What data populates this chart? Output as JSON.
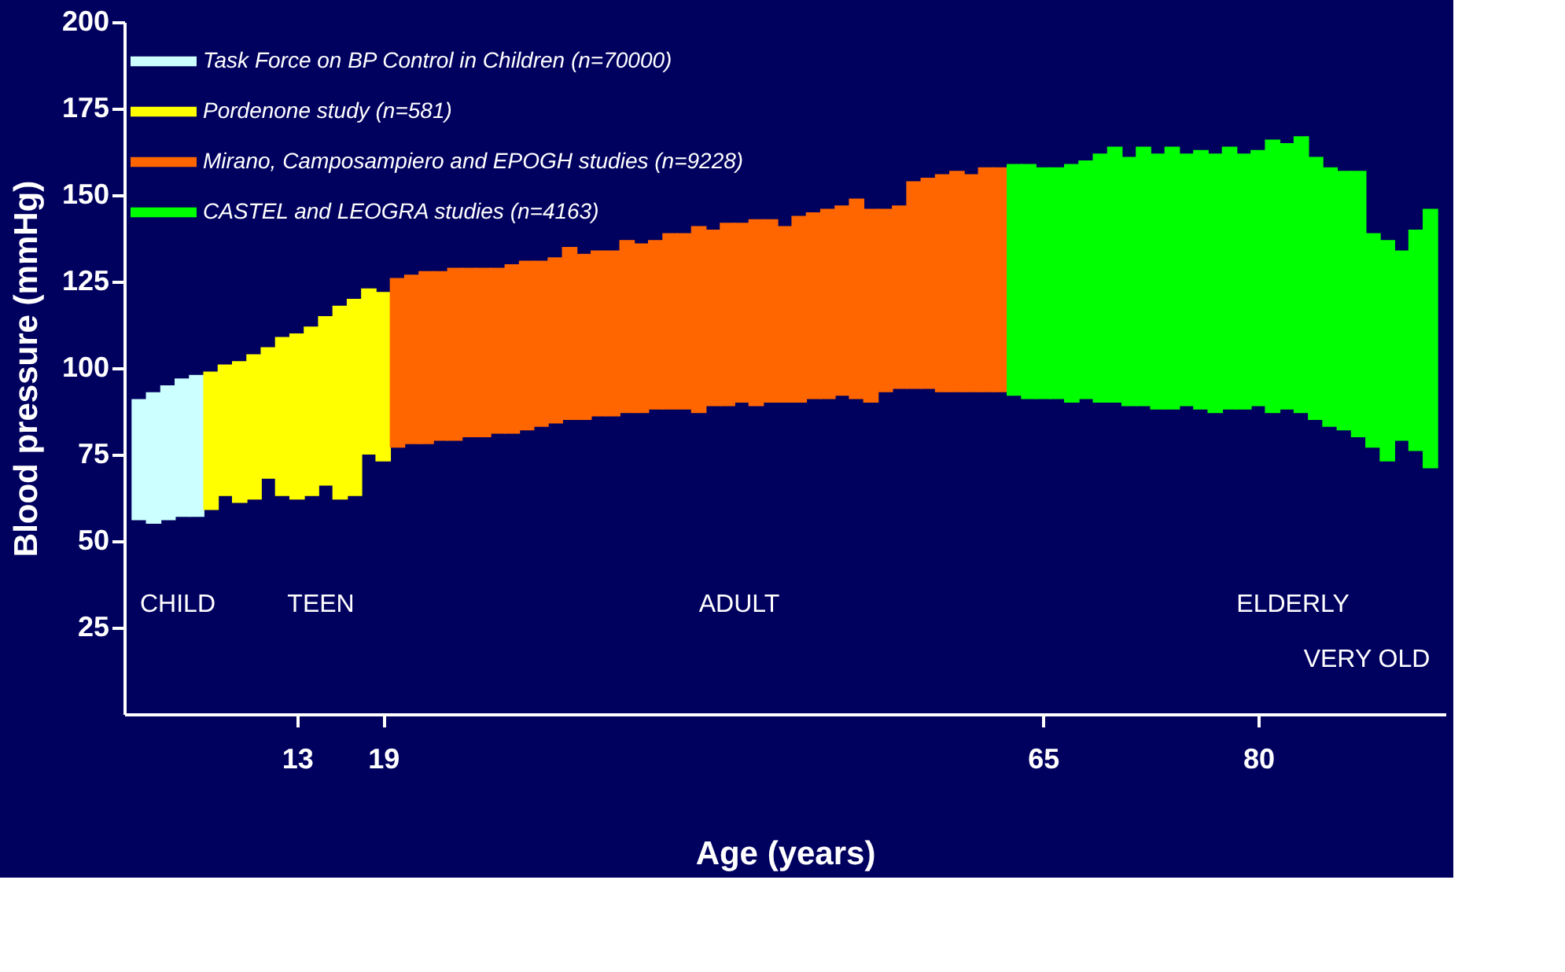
{
  "chart_data": {
    "type": "bar",
    "xlabel": "Age (years)",
    "ylabel": "Blood pressure (mmHg)",
    "series": [
      {
        "name": "Task Force on BP Control in Children (n=70000)",
        "color": "#ccffff",
        "x": [
          2,
          3,
          4,
          5,
          6
        ],
        "base": [
          56,
          55,
          56,
          57,
          57
        ],
        "values": [
          35,
          38,
          39,
          40,
          41
        ]
      },
      {
        "name": "Pordenone study (n=581)",
        "color": "#ffff00",
        "x": [
          7,
          8,
          9,
          10,
          11,
          12,
          13,
          14,
          15,
          16,
          17,
          18,
          19
        ],
        "base": [
          59,
          63,
          61,
          62,
          68,
          63,
          62,
          63,
          66,
          62,
          63,
          75,
          73
        ],
        "values": [
          40,
          38,
          41,
          42,
          38,
          46,
          48,
          49,
          49,
          56,
          57,
          48,
          49
        ]
      },
      {
        "name": " Mirano, Camposampiero and EPOGH studies (n=9228)",
        "color": "#ff6600",
        "x": [
          20,
          21,
          22,
          23,
          24,
          25,
          26,
          27,
          28,
          29,
          30,
          31,
          32,
          33,
          34,
          35,
          36,
          37,
          38,
          39,
          40,
          41,
          42,
          43,
          44,
          45,
          46,
          47,
          48,
          49,
          50,
          51,
          52,
          53,
          54,
          55,
          56,
          57,
          58,
          59,
          60,
          61,
          62
        ],
        "base": [
          77,
          78,
          78,
          79,
          79,
          80,
          80,
          81,
          81,
          82,
          83,
          84,
          85,
          85,
          86,
          86,
          87,
          87,
          88,
          88,
          88,
          87,
          89,
          89,
          90,
          89,
          90,
          90,
          90,
          91,
          91,
          92,
          91,
          90,
          93,
          94,
          94,
          94,
          93,
          93,
          93,
          93,
          93
        ],
        "values": [
          49,
          49,
          50,
          49,
          50,
          49,
          49,
          48,
          49,
          49,
          48,
          48,
          50,
          48,
          48,
          48,
          50,
          49,
          49,
          51,
          51,
          54,
          51,
          53,
          52,
          54,
          53,
          51,
          54,
          54,
          55,
          55,
          58,
          56,
          53,
          53,
          60,
          61,
          63,
          64,
          63,
          65,
          65
        ]
      },
      {
        "name": "CASTEL and LEOGRA studies (n=4163)",
        "color": "#00ff00",
        "x": [
          63,
          64,
          65,
          66,
          67,
          68,
          69,
          70,
          71,
          72,
          73,
          74,
          75,
          76,
          77,
          78,
          79,
          80,
          81,
          82,
          83,
          84,
          85,
          86,
          87,
          88,
          89,
          90,
          91,
          92
        ],
        "base": [
          92,
          91,
          91,
          91,
          90,
          91,
          90,
          90,
          89,
          89,
          88,
          88,
          89,
          88,
          87,
          88,
          88,
          89,
          87,
          88,
          87,
          85,
          83,
          82,
          80,
          77,
          73,
          79,
          76,
          71
        ],
        "values": [
          67,
          68,
          67,
          67,
          69,
          69,
          72,
          74,
          72,
          75,
          74,
          76,
          73,
          75,
          75,
          76,
          74,
          74,
          79,
          77,
          80,
          76,
          75,
          75,
          77,
          62,
          64,
          55,
          64,
          75
        ]
      }
    ],
    "xlim": [
      1.5,
      92.5
    ],
    "xticks": [
      13,
      19,
      65,
      80
    ],
    "ylim": [
      0,
      200
    ],
    "yticks": [
      25,
      50,
      75,
      100,
      125,
      150,
      175,
      200
    ],
    "annotations": [
      "CHILD",
      "TEEN",
      "ADULT",
      "ELDERLY",
      "VERY OLD"
    ],
    "grid": false,
    "legend": "top left"
  }
}
